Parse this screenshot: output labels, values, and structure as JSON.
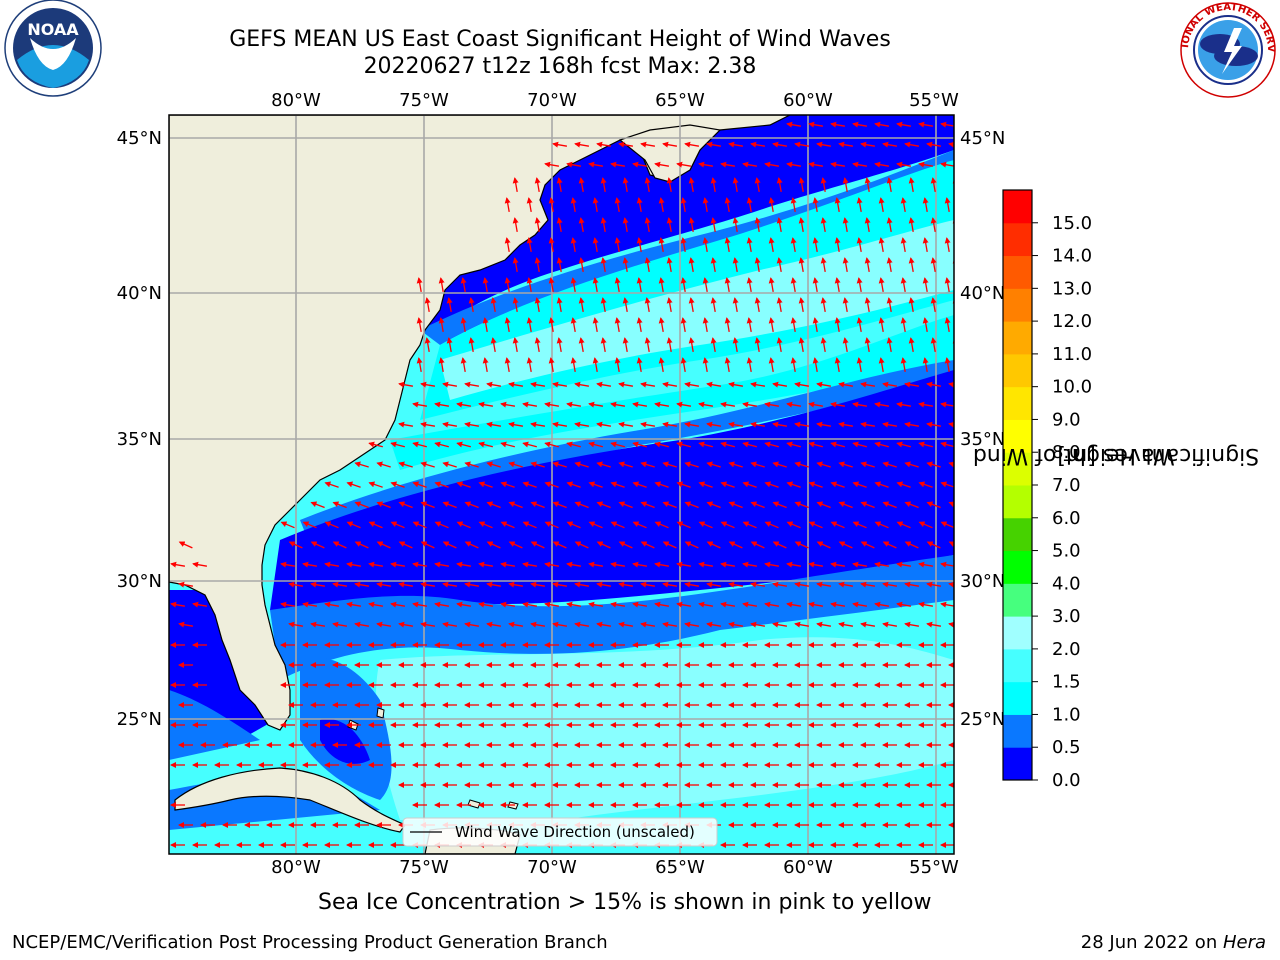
{
  "title": {
    "line1": "GEFS MEAN US East Coast Significant Height of Wind Waves",
    "line2": "20220627 t12z 168h fcst   Max: 2.38"
  },
  "map": {
    "lon_labels": [
      "80°W",
      "75°W",
      "70°W",
      "65°W",
      "60°W",
      "55°W"
    ],
    "lat_labels": [
      "45°N",
      "40°N",
      "35°N",
      "30°N",
      "25°N"
    ],
    "legend_label": "Wind Wave Direction (unscaled)",
    "arrow_color": "#ff0000",
    "land_color": "#efeedc"
  },
  "colorbar": {
    "label_line1": "Significant Height of Wind",
    "label_line2": "Waves [m]",
    "ticks": [
      "0.0",
      "0.5",
      "1.0",
      "1.5",
      "2.0",
      "3.0",
      "4.0",
      "5.0",
      "6.0",
      "7.0",
      "8.0",
      "9.0",
      "10.0",
      "11.0",
      "12.0",
      "13.0",
      "14.0",
      "15.0"
    ],
    "colors": [
      "#0000ff",
      "#0a78ff",
      "#00ffff",
      "#46ffff",
      "#a0ffff",
      "#46ff7e",
      "#00ff00",
      "#46d200",
      "#b4ff00",
      "#dcff00",
      "#ffff00",
      "#ffe600",
      "#ffc800",
      "#ffaa00",
      "#ff8000",
      "#ff5a00",
      "#ff2d00",
      "#ff0000"
    ]
  },
  "caption": "Sea Ice Concentration > 15% is shown in pink to yellow",
  "footer": {
    "left": "NCEP/EMC/Verification Post Processing Product Generation Branch",
    "right_date": "28 Jun 2022 on ",
    "right_host": "Hera"
  },
  "logos": {
    "noaa_text": "NOAA",
    "nws_text": "NATIONAL WEATHER SERVICE"
  }
}
